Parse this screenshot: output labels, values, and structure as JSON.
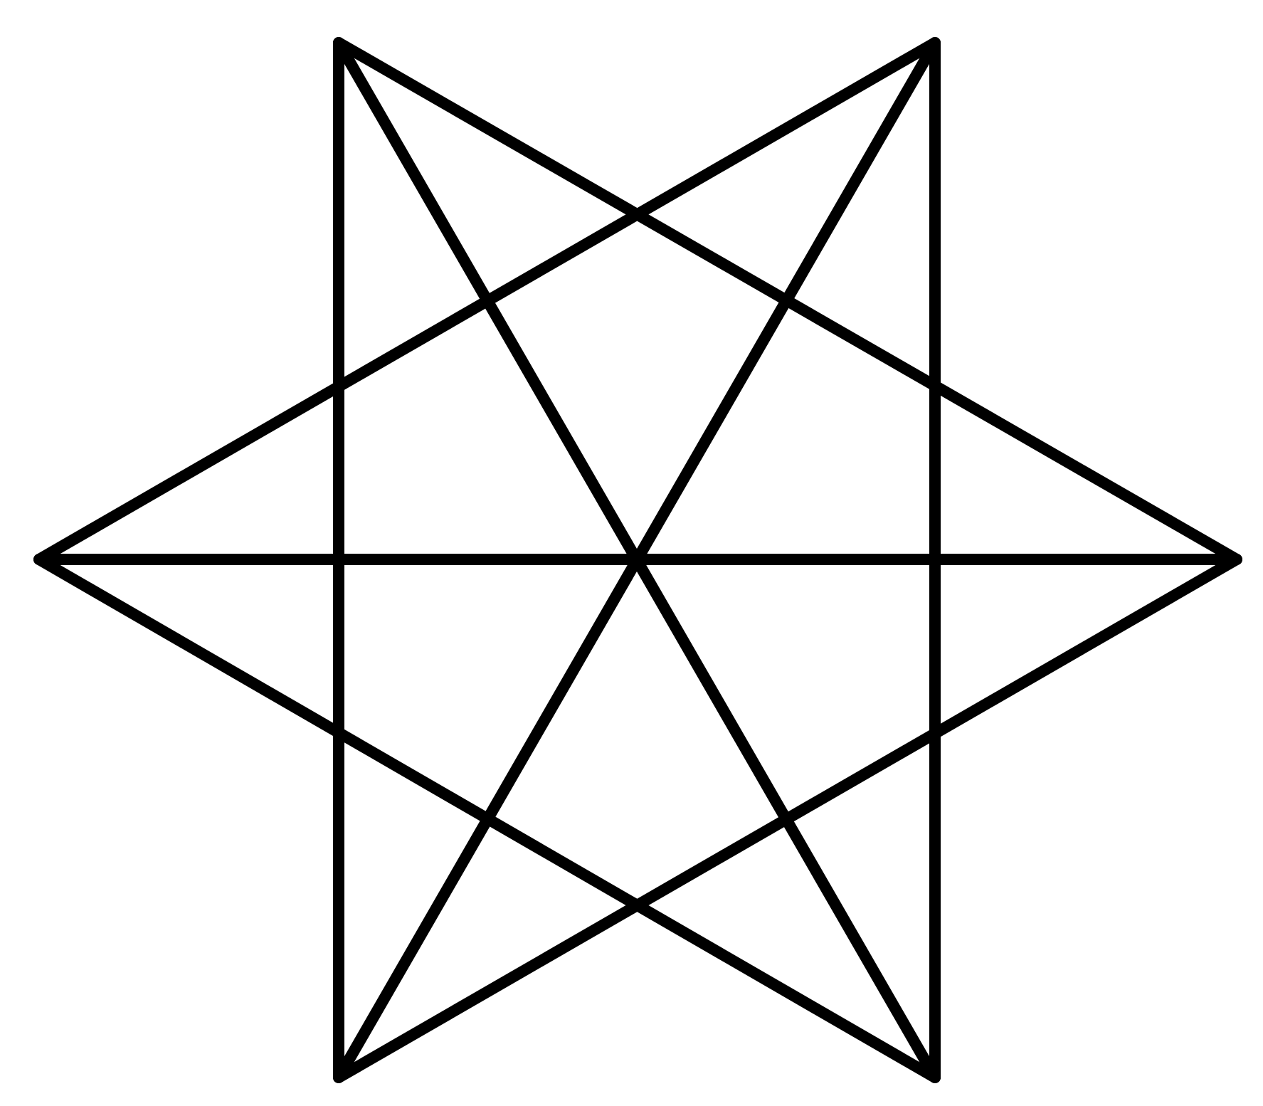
{
  "figure": {
    "type": "geometric line drawing",
    "shape": "hexagram (star of six vertices) with vertical sides and a horizontal diameter",
    "background_color": "#ffffff",
    "stroke_color": "#000000"
  },
  "vertices": [
    {
      "id": "top-left"
    },
    {
      "id": "top-right"
    },
    {
      "id": "right"
    },
    {
      "id": "bottom-right"
    },
    {
      "id": "bottom-left"
    },
    {
      "id": "left"
    }
  ],
  "edges": [
    {
      "id": "left-to-top-right",
      "from": "left",
      "to": "top-right"
    },
    {
      "id": "left-to-bottom-right",
      "from": "left",
      "to": "bottom-right"
    },
    {
      "id": "top-left-to-right",
      "from": "top-left",
      "to": "right"
    },
    {
      "id": "bottom-left-to-right",
      "from": "bottom-left",
      "to": "right"
    },
    {
      "id": "top-left-to-bottom-right",
      "from": "top-left",
      "to": "bottom-right"
    },
    {
      "id": "top-right-to-bottom-left",
      "from": "top-right",
      "to": "bottom-left"
    },
    {
      "id": "left-to-right",
      "from": "left",
      "to": "right"
    },
    {
      "id": "top-left-to-bottom-left",
      "from": "top-left",
      "to": "bottom-left"
    },
    {
      "id": "top-right-to-bottom-right",
      "from": "top-right",
      "to": "bottom-right"
    }
  ]
}
